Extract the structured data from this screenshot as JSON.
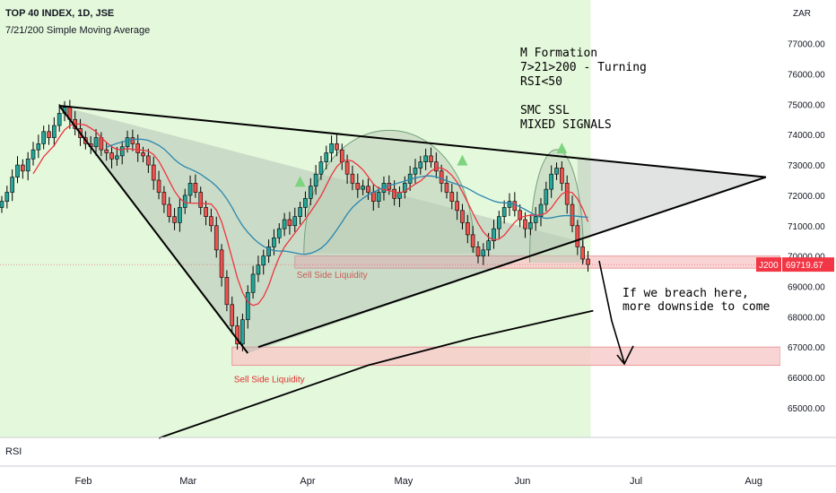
{
  "header": {
    "title": "TOP 40 INDEX, 1D, JSE",
    "subtitle": "7/21/200 Simple Moving Average"
  },
  "annotations": {
    "m_formation": "M Formation",
    "ma_cross": "7>21>200 - Turning",
    "rsi_rule": "RSI<50",
    "smc": "SMC SSL",
    "mixed": "MIXED SIGNALS",
    "sell_liq_upper": "Sell Side Liquidity",
    "sell_liq_lower": "Sell Side Liquidity",
    "breach_1": "If we breach here,",
    "breach_2": "more downside to come"
  },
  "price_tag": {
    "symbol": "J200",
    "value": "69719.67"
  },
  "rsi_label": "RSI",
  "colors": {
    "up": "#26a69a",
    "down": "#ef5350",
    "highlight_bg": "#e4f8dc",
    "ma7": "#ef3340",
    "ma21": "#2a86b0",
    "ma200": "#000000",
    "zone": "#f7c9c9",
    "tag": "#f23645"
  },
  "chart_data": {
    "type": "candlestick",
    "currency": "ZAR",
    "ylim": [
      64200,
      78200
    ],
    "y_ticks": [
      65000,
      66000,
      67000,
      68000,
      69000,
      70000,
      71000,
      72000,
      73000,
      74000,
      75000,
      76000,
      77000
    ],
    "x_tick_labels": [
      "Feb",
      "Mar",
      "Apr",
      "May",
      "Jun",
      "Jul",
      "Aug"
    ],
    "x_tick_index": [
      15,
      35,
      58,
      76,
      99,
      121,
      143
    ],
    "last_price": 69719.67,
    "last_index": 112,
    "ohlc_close": [
      71800,
      72100,
      72600,
      73000,
      72800,
      73200,
      73500,
      73700,
      74100,
      73900,
      74300,
      74700,
      74900,
      74500,
      74200,
      73900,
      73700,
      73600,
      73900,
      73500,
      73400,
      73200,
      73300,
      73600,
      73900,
      73700,
      73400,
      73300,
      73000,
      72500,
      72100,
      71700,
      71300,
      71100,
      71600,
      72000,
      72400,
      72100,
      71600,
      71300,
      71000,
      70200,
      69300,
      68400,
      67700,
      67100,
      67900,
      68800,
      69400,
      69700,
      70000,
      70300,
      70600,
      70900,
      71200,
      71000,
      71300,
      71600,
      71900,
      72300,
      72700,
      73100,
      73400,
      73700,
      73500,
      73100,
      72700,
      72400,
      72200,
      72300,
      72100,
      71800,
      72100,
      72400,
      72200,
      71900,
      72100,
      72400,
      72700,
      72900,
      73100,
      73300,
      73100,
      72800,
      72400,
      72100,
      71800,
      71500,
      71100,
      70700,
      70300,
      70000,
      70200,
      70500,
      70900,
      71300,
      71600,
      71800,
      71500,
      71200,
      70900,
      71100,
      71300,
      71700,
      72200,
      72700,
      72900,
      72400,
      71700,
      71000,
      70300,
      69900,
      69719.67
    ],
    "moving_averages": [
      {
        "period": 7,
        "color_key": "ma7"
      },
      {
        "period": 21,
        "color_key": "ma21"
      },
      {
        "period": 200,
        "color_key": "ma200",
        "points": [
          [
            30,
            64000
          ],
          [
            50,
            65200
          ],
          [
            70,
            66400
          ],
          [
            90,
            67300
          ],
          [
            113,
            68200
          ]
        ]
      }
    ],
    "zones": [
      {
        "label_key": "sell_liq_upper",
        "start_index": 56,
        "y": [
          69600,
          70000
        ]
      },
      {
        "label_key": "sell_liq_lower",
        "start_index": 44,
        "y": [
          66400,
          67000
        ]
      }
    ],
    "trendlines": [
      {
        "from": [
          11,
          74950
        ],
        "to": [
          146,
          72600
        ]
      },
      {
        "from": [
          49,
          67000
        ],
        "to": [
          146,
          72600
        ]
      },
      {
        "from": [
          11,
          74950
        ],
        "to": [
          47,
          66800
        ]
      }
    ],
    "shapes": [
      {
        "type": "triangle",
        "points": [
          [
            11,
            74950
          ],
          [
            47,
            66800
          ],
          [
            110,
            70500
          ]
        ]
      },
      {
        "type": "wedge",
        "points": [
          [
            110,
            73200
          ],
          [
            110,
            70500
          ],
          [
            146,
            72600
          ]
        ]
      },
      {
        "type": "dome",
        "center": [
          74,
          71800
        ]
      },
      {
        "type": "dome",
        "center": [
          106,
          71500
        ]
      }
    ],
    "markers": [
      {
        "type": "up-arrow",
        "at": [
          57,
          72400
        ]
      },
      {
        "type": "up-arrow",
        "at": [
          88,
          73100
        ]
      },
      {
        "type": "up-arrow",
        "at": [
          107,
          73500
        ]
      }
    ]
  }
}
